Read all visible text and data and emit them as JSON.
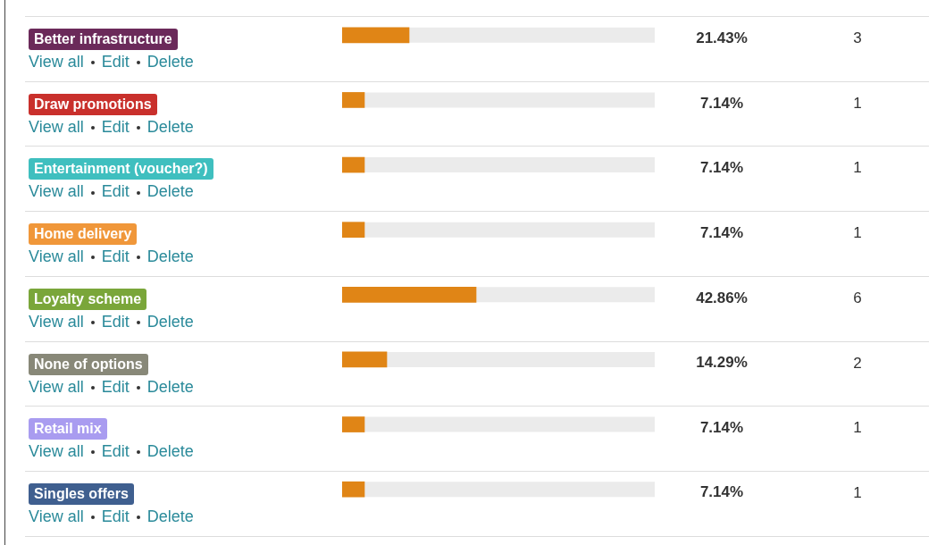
{
  "chart_data": {
    "type": "bar",
    "orientation": "horizontal",
    "categories": [
      "Better infrastructure",
      "Draw promotions",
      "Entertainment (voucher?)",
      "Home delivery",
      "Loyalty scheme",
      "None of options",
      "Retail mix",
      "Singles offers"
    ],
    "values": [
      21.43,
      7.14,
      7.14,
      7.14,
      42.86,
      14.29,
      7.14,
      7.14
    ],
    "value_labels": [
      "21.43%",
      "7.14%",
      "7.14%",
      "7.14%",
      "42.86%",
      "14.29%",
      "7.14%",
      "7.14%"
    ],
    "color": "#e08516",
    "xlim": [
      0,
      100
    ],
    "tick_labels": false,
    "legend": false,
    "annotations": [
      "3",
      "1",
      "1",
      "1",
      "6",
      "2",
      "1",
      "1",
      "View all",
      "Edit",
      "Delete"
    ]
  }
}
